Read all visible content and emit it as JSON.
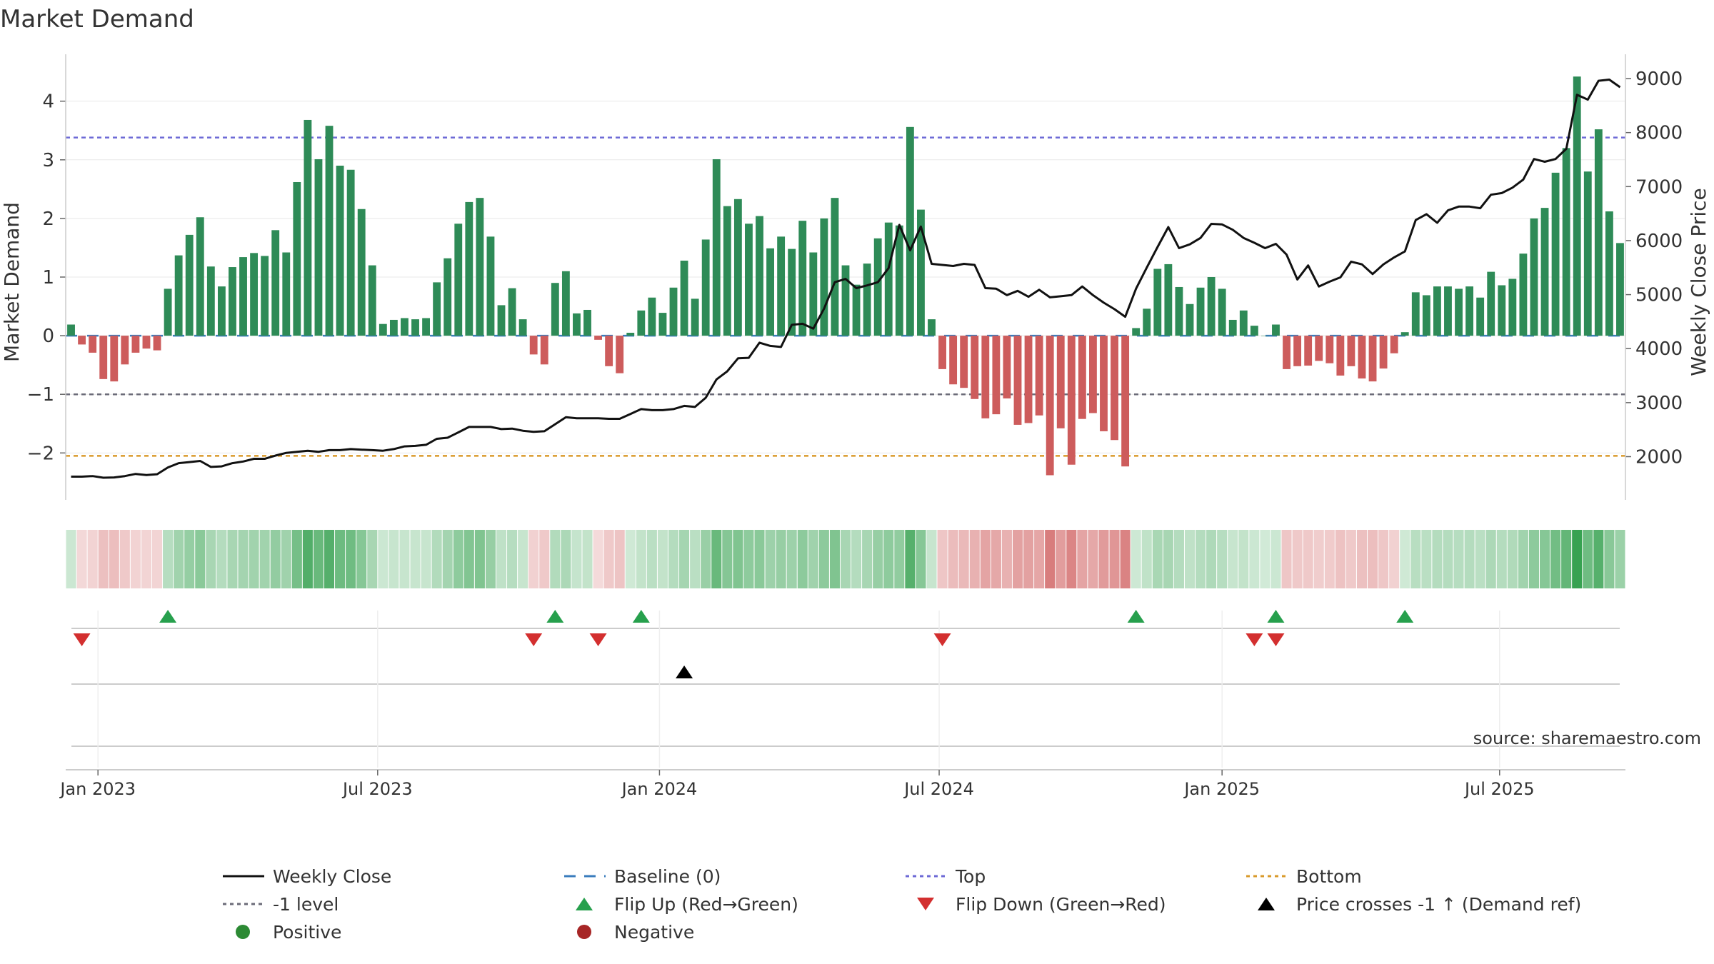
{
  "chart_data": {
    "type": "bar",
    "title": "Market Demand",
    "ylabel": "Market Demand",
    "y2label": "Weekly Close Price",
    "ylim": [
      -2.8,
      4.8
    ],
    "y2lim": [
      1200,
      9450
    ],
    "yticks": [
      "4",
      "3",
      "2",
      "1",
      "0",
      "−1",
      "−2"
    ],
    "y2ticks": [
      "9000",
      "8000",
      "7000",
      "6000",
      "5000",
      "4000",
      "3000",
      "2000"
    ],
    "xlabels": [
      "Jan 2023",
      "Jul 2023",
      "Jan 2024",
      "Jul 2024",
      "Jan 2025",
      "Jul 2025"
    ],
    "reference_lines": {
      "top": 3.38,
      "minus1": -1.0,
      "bottom": -2.05
    },
    "demand": [
      0.19,
      -0.15,
      -0.29,
      -0.74,
      -0.78,
      -0.49,
      -0.29,
      -0.22,
      -0.25,
      0.8,
      1.37,
      1.72,
      2.02,
      1.18,
      0.84,
      1.17,
      1.34,
      1.41,
      1.36,
      1.8,
      1.42,
      2.62,
      3.68,
      3.01,
      3.58,
      2.9,
      2.83,
      2.16,
      1.2,
      0.2,
      0.27,
      0.3,
      0.28,
      0.3,
      0.91,
      1.32,
      1.91,
      2.28,
      2.35,
      1.69,
      0.52,
      0.81,
      0.28,
      -0.32,
      -0.49,
      0.9,
      1.1,
      0.38,
      0.44,
      -0.07,
      -0.52,
      -0.64,
      0.05,
      0.43,
      0.65,
      0.39,
      0.82,
      1.28,
      0.63,
      1.64,
      3.01,
      2.21,
      2.33,
      1.91,
      2.04,
      1.49,
      1.69,
      1.48,
      1.96,
      1.42,
      2.0,
      2.35,
      1.2,
      0.87,
      1.23,
      1.66,
      1.93,
      1.88,
      3.56,
      2.15,
      0.28,
      -0.57,
      -0.83,
      -0.89,
      -1.08,
      -1.41,
      -1.34,
      -1.07,
      -1.52,
      -1.49,
      -1.36,
      -2.38,
      -1.58,
      -2.2,
      -1.42,
      -1.32,
      -1.63,
      -1.78,
      -2.23,
      0.13,
      0.46,
      1.14,
      1.22,
      0.83,
      0.54,
      0.82,
      1.0,
      0.8,
      0.27,
      0.43,
      0.17,
      0.0,
      0.19,
      -0.57,
      -0.52,
      -0.51,
      -0.43,
      -0.47,
      -0.68,
      -0.52,
      -0.73,
      -0.78,
      -0.56,
      -0.3,
      0.06,
      0.74,
      0.69,
      0.84,
      0.84,
      0.8,
      0.84,
      0.65,
      1.09,
      0.86,
      0.97,
      1.4,
      2.0,
      2.18,
      2.78,
      3.2,
      4.42,
      2.8,
      3.52,
      2.12,
      1.58
    ],
    "weekly_close": [
      1630,
      1630,
      1640,
      1610,
      1615,
      1640,
      1680,
      1660,
      1675,
      1800,
      1880,
      1900,
      1920,
      1810,
      1820,
      1880,
      1910,
      1960,
      1960,
      2020,
      2070,
      2090,
      2110,
      2090,
      2120,
      2120,
      2140,
      2130,
      2120,
      2110,
      2140,
      2190,
      2200,
      2220,
      2330,
      2350,
      2450,
      2550,
      2550,
      2550,
      2510,
      2520,
      2480,
      2460,
      2470,
      2600,
      2730,
      2710,
      2710,
      2710,
      2700,
      2700,
      2790,
      2880,
      2860,
      2860,
      2880,
      2940,
      2920,
      3090,
      3430,
      3580,
      3820,
      3830,
      4110,
      4050,
      4030,
      4440,
      4460,
      4370,
      4740,
      5230,
      5290,
      5120,
      5170,
      5230,
      5490,
      6290,
      5820,
      6260,
      5570,
      5550,
      5530,
      5570,
      5550,
      5120,
      5110,
      4990,
      5070,
      4960,
      5090,
      4950,
      4970,
      4990,
      5150,
      4990,
      4850,
      4730,
      4590,
      5110,
      5500,
      5880,
      6250,
      5860,
      5930,
      6050,
      6310,
      6300,
      6200,
      6050,
      5960,
      5860,
      5940,
      5740,
      5280,
      5540,
      5150,
      5240,
      5320,
      5610,
      5560,
      5380,
      5560,
      5690,
      5800,
      6380,
      6490,
      6330,
      6560,
      6630,
      6630,
      6600,
      6850,
      6880,
      6980,
      7130,
      7510,
      7460,
      7510,
      7700,
      8700,
      8610,
      8960,
      8980,
      8840
    ],
    "flip_up_weeks": [
      9,
      45,
      53,
      99,
      112,
      124
    ],
    "flip_down_weeks": [
      1,
      43,
      49,
      81,
      110,
      112
    ],
    "price_cross_weeks": [
      57
    ],
    "legend": [
      {
        "label": "Weekly Close",
        "symbol": "line",
        "color": "#111111"
      },
      {
        "label": "Baseline (0)",
        "symbol": "dash",
        "color": "#3a7cbd"
      },
      {
        "label": "Top",
        "symbol": "dot",
        "color": "#6d6ad6"
      },
      {
        "label": "Bottom",
        "symbol": "dot",
        "color": "#d99a2b"
      },
      {
        "label": "-1 level",
        "symbol": "dot",
        "color": "#6b6b78"
      },
      {
        "label": "Flip Up (Red→Green)",
        "symbol": "up",
        "color": "#27a04d"
      },
      {
        "label": "Flip Down (Green→Red)",
        "symbol": "down",
        "color": "#d32f2f"
      },
      {
        "label": "Price crosses -1 ↑ (Demand ref)",
        "symbol": "up",
        "color": "#000000"
      },
      {
        "label": "Positive",
        "symbol": "circle",
        "color": "#2c8a34"
      },
      {
        "label": "Negative",
        "symbol": "circle",
        "color": "#a72626"
      }
    ],
    "source": "source: sharemaestro.com"
  },
  "colors": {
    "positive_bar": "#2e8b57",
    "negative_bar": "#cd5c5c",
    "gridline": "#e8e8e8"
  }
}
